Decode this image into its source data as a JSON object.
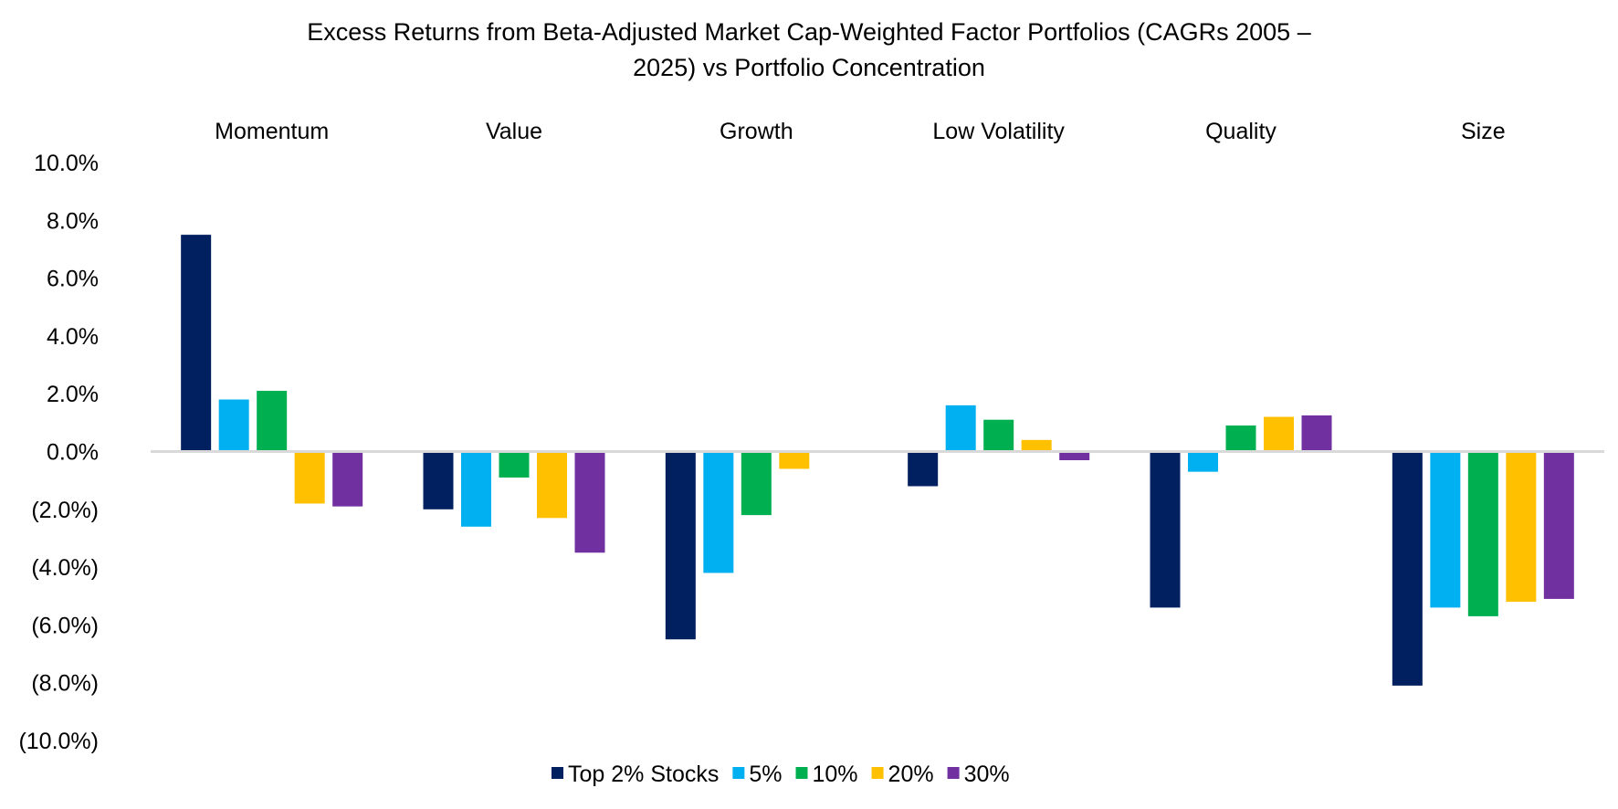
{
  "chart_data": {
    "type": "bar",
    "title_lines": [
      "Excess Returns from Beta-Adjusted Market Cap-Weighted Factor Portfolios (CAGRs 2005 –",
      "2025) vs Portfolio Concentration"
    ],
    "categories": [
      "Momentum",
      "Value",
      "Growth",
      "Low Volatility",
      "Quality",
      "Size"
    ],
    "category_label_position": "top",
    "ylim": [
      -10,
      10
    ],
    "yticks": [
      10,
      8,
      6,
      4,
      2,
      0,
      -2,
      -4,
      -6,
      -8,
      -10
    ],
    "ytick_labels": [
      "10.0%",
      "8.0%",
      "6.0%",
      "4.0%",
      "2.0%",
      "0.0%",
      "(2.0%)",
      "(4.0%)",
      "(6.0%)",
      "(8.0%)",
      "(10.0%)"
    ],
    "grid": false,
    "legend_placement": "bottom",
    "series": [
      {
        "name": "Top 2% Stocks",
        "color": "#002060",
        "values": [
          7.5,
          -2.0,
          -6.5,
          -1.2,
          -5.4,
          -8.1
        ]
      },
      {
        "name": "5%",
        "color": "#00B0F0",
        "values": [
          1.8,
          -2.6,
          -4.2,
          1.6,
          -0.7,
          -5.4
        ]
      },
      {
        "name": "10%",
        "color": "#00B050",
        "values": [
          2.1,
          -0.9,
          -2.2,
          1.1,
          0.9,
          -5.7
        ]
      },
      {
        "name": "20%",
        "color": "#FFC000",
        "values": [
          -1.8,
          -2.3,
          -0.6,
          0.4,
          1.2,
          -5.2
        ]
      },
      {
        "name": "30%",
        "color": "#7030A0",
        "values": [
          -1.9,
          -3.5,
          0.0,
          -0.3,
          1.25,
          -5.1
        ]
      }
    ],
    "zero_line_color": "#D9D9D9"
  }
}
